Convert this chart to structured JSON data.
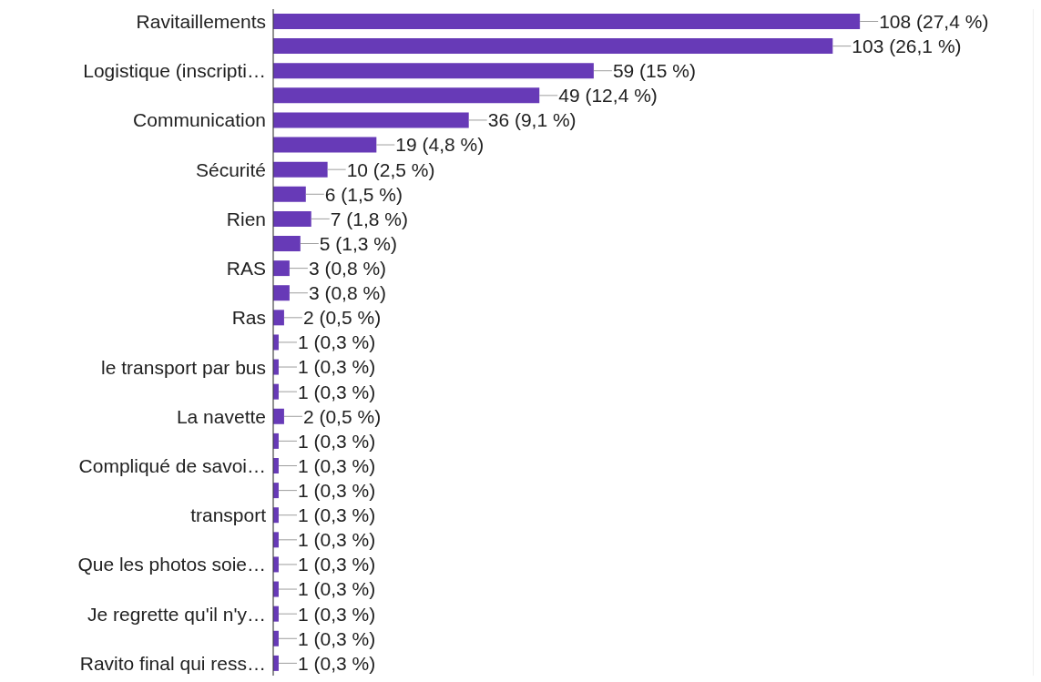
{
  "chart_data": {
    "type": "bar",
    "orientation": "horizontal",
    "categories": [
      "Ravitaillements",
      null,
      "Logistique (inscripti…",
      null,
      "Communication",
      null,
      "Sécurité",
      null,
      "Rien",
      null,
      "RAS",
      null,
      "Ras",
      null,
      "le transport par bus",
      null,
      "La navette",
      null,
      "Compliqué de savoi…",
      null,
      "transport",
      null,
      "Que les photos soie…",
      null,
      "Je regrette qu'il n'y…",
      null,
      "Ravito final qui ress…"
    ],
    "values": [
      108,
      103,
      59,
      49,
      36,
      19,
      10,
      6,
      7,
      5,
      3,
      3,
      2,
      1,
      1,
      1,
      2,
      1,
      1,
      1,
      1,
      1,
      1,
      1,
      1,
      1,
      1
    ],
    "value_labels": [
      "108 (27,4 %)",
      "103 (26,1 %)",
      "59 (15 %)",
      "49 (12,4 %)",
      "36 (9,1 %)",
      "19 (4,8 %)",
      "10 (2,5 %)",
      "6 (1,5 %)",
      "7 (1,8 %)",
      "5 (1,3 %)",
      "3 (0,8 %)",
      "3 (0,8 %)",
      "2 (0,5 %)",
      "1 (0,3 %)",
      "1 (0,3 %)",
      "1 (0,3 %)",
      "2 (0,5 %)",
      "1 (0,3 %)",
      "1 (0,3 %)",
      "1 (0,3 %)",
      "1 (0,3 %)",
      "1 (0,3 %)",
      "1 (0,3 %)",
      "1 (0,3 %)",
      "1 (0,3 %)",
      "1 (0,3 %)",
      "1 (0,3 %)"
    ],
    "color": "#673ab7",
    "xlim": [
      0,
      140
    ],
    "grid": "x",
    "tick_labels": "y"
  }
}
